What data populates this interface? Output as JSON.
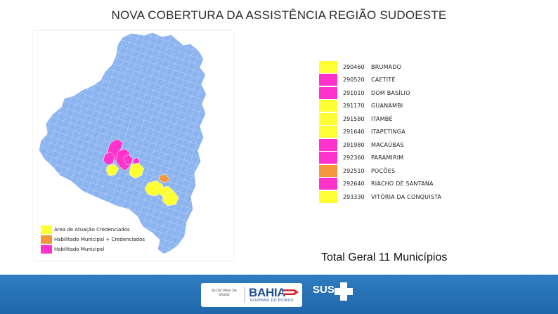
{
  "title": "NOVA COBERTURA DA ASSISTÊNCIA REGIÃO SUDOESTE",
  "colors": {
    "state_fill": "#8ab3f0",
    "state_border": "#ffffff",
    "yellow": "#ffff33",
    "orange": "#f6963c",
    "magenta": "#ff33cc",
    "footer_blue": "#2474b8"
  },
  "map": {
    "region": "Bahia",
    "highlighted": [
      {
        "color": "magenta",
        "municipality": "DOM BASÍLIO"
      },
      {
        "color": "magenta",
        "municipality": "MACAÚBAS"
      },
      {
        "color": "magenta",
        "municipality": "PARAMIRIM"
      },
      {
        "color": "magenta",
        "municipality": "RIACHO DE SANTANA"
      },
      {
        "color": "magenta",
        "municipality": "CAETITÉ"
      },
      {
        "color": "yellow",
        "municipality": "BRUMADO"
      },
      {
        "color": "yellow",
        "municipality": "GUANAMBI"
      },
      {
        "color": "yellow",
        "municipality": "ITAMBÉ"
      },
      {
        "color": "yellow",
        "municipality": "ITAPETINGA"
      },
      {
        "color": "yellow",
        "municipality": "VITÓRIA DA CONQUISTA"
      },
      {
        "color": "orange",
        "municipality": "POÇÕES"
      }
    ]
  },
  "legend": [
    {
      "label": "Área de Atuação Credenciados",
      "color": "yellow"
    },
    {
      "label": "Habilitado Municipal + Credenciados",
      "color": "orange"
    },
    {
      "label": "Habilitado Municipal",
      "color": "magenta"
    }
  ],
  "municipalities": [
    {
      "code": "290460",
      "name": "BRUMADO",
      "color": "yellow"
    },
    {
      "code": "290520",
      "name": "CAETITÉ",
      "color": "magenta"
    },
    {
      "code": "291010",
      "name": "DOM BASÍLIO",
      "color": "magenta"
    },
    {
      "code": "291170",
      "name": "GUANAMBI",
      "color": "yellow"
    },
    {
      "code": "291580",
      "name": "ITAMBÉ",
      "color": "yellow"
    },
    {
      "code": "291640",
      "name": "ITAPETINGA",
      "color": "yellow"
    },
    {
      "code": "291980",
      "name": "MACAÚBAS",
      "color": "magenta"
    },
    {
      "code": "292360",
      "name": "PARAMIRIM",
      "color": "magenta"
    },
    {
      "code": "292510",
      "name": "POÇÕES",
      "color": "orange"
    },
    {
      "code": "292640",
      "name": "RIACHO DE SANTANA",
      "color": "magenta"
    },
    {
      "code": "293330",
      "name": "VITÓRIA DA CONQUISTA",
      "color": "yellow"
    }
  ],
  "total": "Total Geral 11 Municípios",
  "footer": {
    "secretaria": "SECRETARIA DA SAÚDE",
    "bahia": "BAHIA",
    "governo": "GOVERNO DO ESTADO",
    "sus": "SUS"
  }
}
